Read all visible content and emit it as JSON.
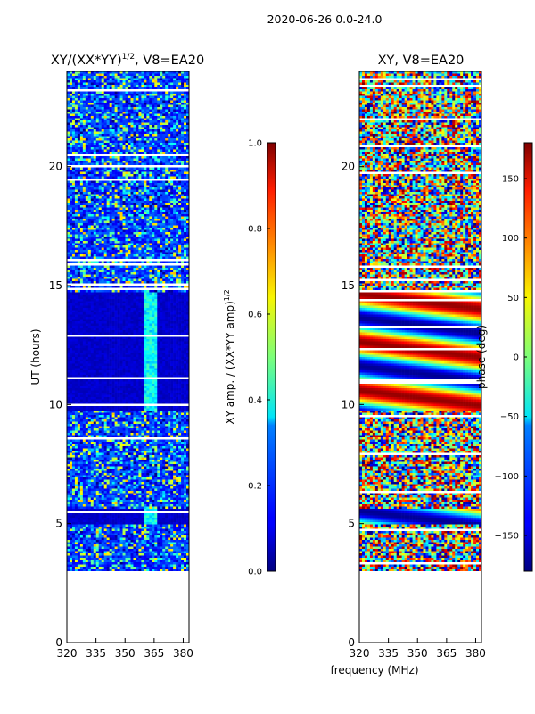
{
  "figure": {
    "suptitle": "2020-06-26 0.0-24.0",
    "shared_xlabel": "frequency (MHz)"
  },
  "chart_data": [
    {
      "type": "heatmap",
      "title_base": "XY/(XX*YY)",
      "title_sup": "1/2",
      "title_suffix": ", V8=EA20",
      "ylabel": "UT (hours)",
      "xlabel": "",
      "xlim": [
        320,
        383
      ],
      "ylim": [
        0,
        24
      ],
      "xticks": [
        "320",
        "335",
        "350",
        "365",
        "380"
      ],
      "xtick_values": [
        320,
        335,
        350,
        365,
        380
      ],
      "yticks": [
        "0",
        "5",
        "10",
        "15",
        "20"
      ],
      "ytick_values": [
        0,
        5,
        10,
        15,
        20
      ],
      "data_time_range": [
        3.0,
        24.0
      ],
      "quiet_block_hours": [
        [
          9.8,
          14.8
        ],
        [
          5.0,
          5.7
        ]
      ],
      "colorbar": {
        "label_base": "XY amp. / (XX*YY amp)",
        "label_sup": "1/2",
        "range": [
          0.0,
          1.0
        ],
        "ticks": [
          "0.0",
          "0.2",
          "0.4",
          "0.6",
          "0.8",
          "1.0"
        ],
        "tick_values": [
          0.0,
          0.2,
          0.4,
          0.6,
          0.8,
          1.0
        ]
      }
    },
    {
      "type": "heatmap",
      "title": "XY, V8=EA20",
      "ylabel": "",
      "xlabel": "frequency (MHz)",
      "xlim": [
        320,
        383
      ],
      "ylim": [
        0,
        24
      ],
      "xticks": [
        "320",
        "335",
        "350",
        "365",
        "380"
      ],
      "xtick_values": [
        320,
        335,
        350,
        365,
        380
      ],
      "yticks": [
        "0",
        "5",
        "10",
        "15",
        "20"
      ],
      "ytick_values": [
        0,
        5,
        10,
        15,
        20
      ],
      "data_time_range": [
        3.0,
        24.0
      ],
      "colorbar": {
        "label": "phase (deg)",
        "range": [
          -180,
          180
        ],
        "ticks": [
          "−150",
          "−100",
          "−50",
          "0",
          "50",
          "100",
          "150"
        ],
        "tick_values": [
          -150,
          -100,
          -50,
          0,
          50,
          100,
          150
        ]
      }
    }
  ]
}
